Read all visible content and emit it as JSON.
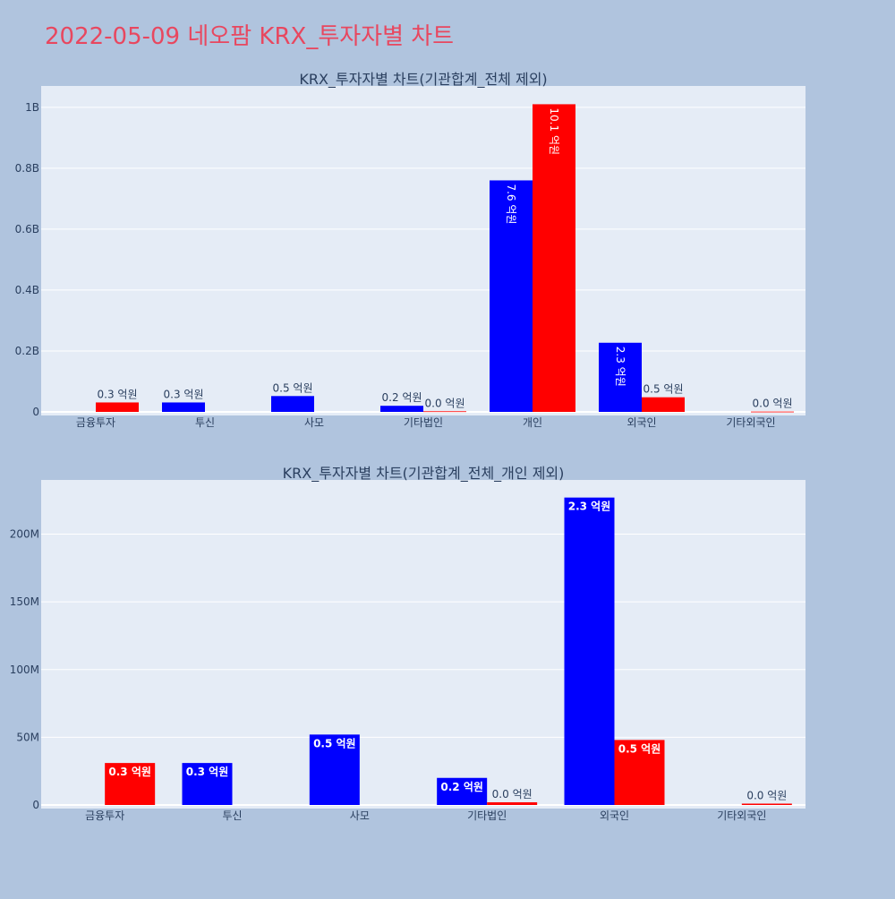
{
  "page_title": "2022-05-09 네오팜 KRX_투자자별 차트",
  "colors": {
    "background": "#b0c4de",
    "plot_bg": "#e5ecf6",
    "title": "#e8475f",
    "text": "#2a3f5f",
    "series_blue": "#0000ff",
    "series_red": "#ff0000"
  },
  "chart_data": [
    {
      "type": "bar",
      "title": "KRX_투자자별 차트(기관합계_전체 제외)",
      "categories": [
        "금융투자",
        "투신",
        "사모",
        "기타법인",
        "개인",
        "외국인",
        "기타외국인"
      ],
      "ylim": [
        0,
        1070000000
      ],
      "yticks": [
        0,
        200000000,
        400000000,
        600000000,
        800000000,
        1000000000
      ],
      "ytick_labels": [
        "0",
        "0.2B",
        "0.4B",
        "0.6B",
        "0.8B",
        "1B"
      ],
      "grid": true,
      "series": [
        {
          "color": "#0000ff",
          "values": [
            null,
            31000000,
            52000000,
            20000000,
            760000000,
            227000000,
            null
          ],
          "labels": [
            "",
            "0.3 억원",
            "0.5 억원",
            "0.2 억원",
            "7.6 억원",
            "2.3 억원",
            ""
          ]
        },
        {
          "color": "#ff0000",
          "values": [
            31000000,
            null,
            null,
            2000000,
            1010000000,
            48000000,
            1000000
          ],
          "labels": [
            "0.3 억원",
            "",
            "",
            "0.0 억원",
            "10.1 억원",
            "0.5 억원",
            "0.0 억원"
          ]
        }
      ]
    },
    {
      "type": "bar",
      "title": "KRX_투자자별 차트(기관합계_전체_개인 제외)",
      "categories": [
        "금융투자",
        "투신",
        "사모",
        "기타법인",
        "외국인",
        "기타외국인"
      ],
      "ylim": [
        0,
        240000000
      ],
      "yticks": [
        0,
        50000000,
        100000000,
        150000000,
        200000000
      ],
      "ytick_labels": [
        "0",
        "50M",
        "100M",
        "150M",
        "200M"
      ],
      "grid": true,
      "series": [
        {
          "color": "#0000ff",
          "values": [
            null,
            31000000,
            52000000,
            20000000,
            227000000,
            null
          ],
          "labels": [
            "",
            "0.3 억원",
            "0.5 억원",
            "0.2 억원",
            "2.3 억원",
            ""
          ]
        },
        {
          "color": "#ff0000",
          "values": [
            31000000,
            null,
            null,
            2000000,
            48000000,
            1000000
          ],
          "labels": [
            "0.3 억원",
            "",
            "",
            "0.0 억원",
            "0.5 억원",
            "0.0 억원"
          ]
        }
      ]
    }
  ]
}
